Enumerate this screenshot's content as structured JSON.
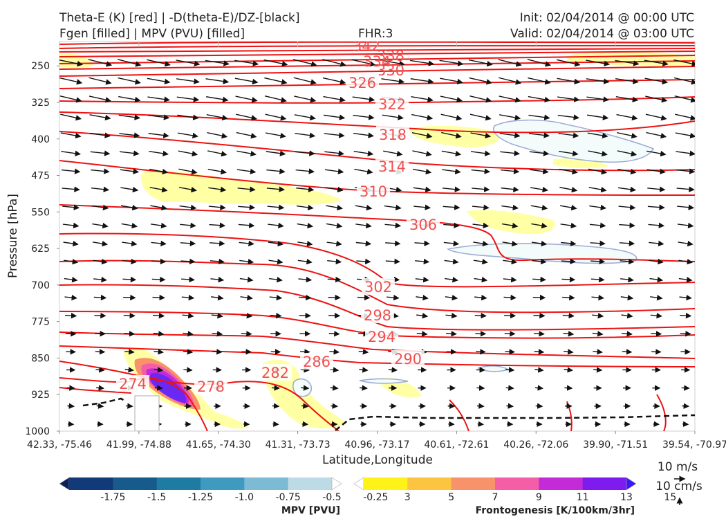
{
  "header": {
    "line1_left": "Theta-E (K) [red] | -D(theta-E)/DZ-[black]",
    "line2_left": "Fgen [filled] | MPV (PVU) [filled]",
    "fhr": "FHR:3",
    "init": "Init: 02/04/2014 @ 00:00 UTC",
    "valid": "Valid: 02/04/2014 @ 03:00 UTC"
  },
  "chart_data": {
    "type": "cross-section",
    "xlabel": "Latitude,Longitude",
    "ylabel": "Pressure [hPa]",
    "x_ticks": [
      "42.33, -75.46",
      "41.99, -74.88",
      "41.65, -74.30",
      "41.31, -73.73",
      "40.96, -73.17",
      "40.61, -72.61",
      "40.26, -72.06",
      "39.90, -71.51",
      "39.54, -70.97"
    ],
    "y_ticks": [
      250,
      325,
      400,
      475,
      550,
      625,
      700,
      775,
      850,
      925,
      1000
    ],
    "y_range": [
      200,
      1000
    ],
    "theta_e_contour_labels": [
      "342",
      "338",
      "334",
      "330",
      "326",
      "322",
      "318",
      "314",
      "310",
      "306",
      "302",
      "298",
      "294",
      "290",
      "286",
      "282",
      "278",
      "274"
    ],
    "colorbars": [
      {
        "title": "MPV [PVU]",
        "labels": [
          "-1.75",
          "-1.5",
          "-1.25",
          "-1.0",
          "-0.75",
          "-0.5",
          "-0.25"
        ],
        "colors": [
          "#0a1f5c",
          "#123a78",
          "#175a8c",
          "#1e7ca3",
          "#3e9bbf",
          "#7dbad3",
          "#bcdbe6",
          "#ffffff"
        ]
      },
      {
        "title": "Frontogenesis [K/100km/3hr]",
        "labels": [
          "3",
          "5",
          "7",
          "9",
          "11",
          "13",
          "15"
        ],
        "colors": [
          "#ffffff",
          "#fff219",
          "#fbc441",
          "#f8926a",
          "#f35ea6",
          "#c42bd8",
          "#7e1cf0",
          "#3a18f7"
        ]
      }
    ],
    "reference_vectors": [
      "10 m/s",
      "10 cm/s"
    ]
  }
}
